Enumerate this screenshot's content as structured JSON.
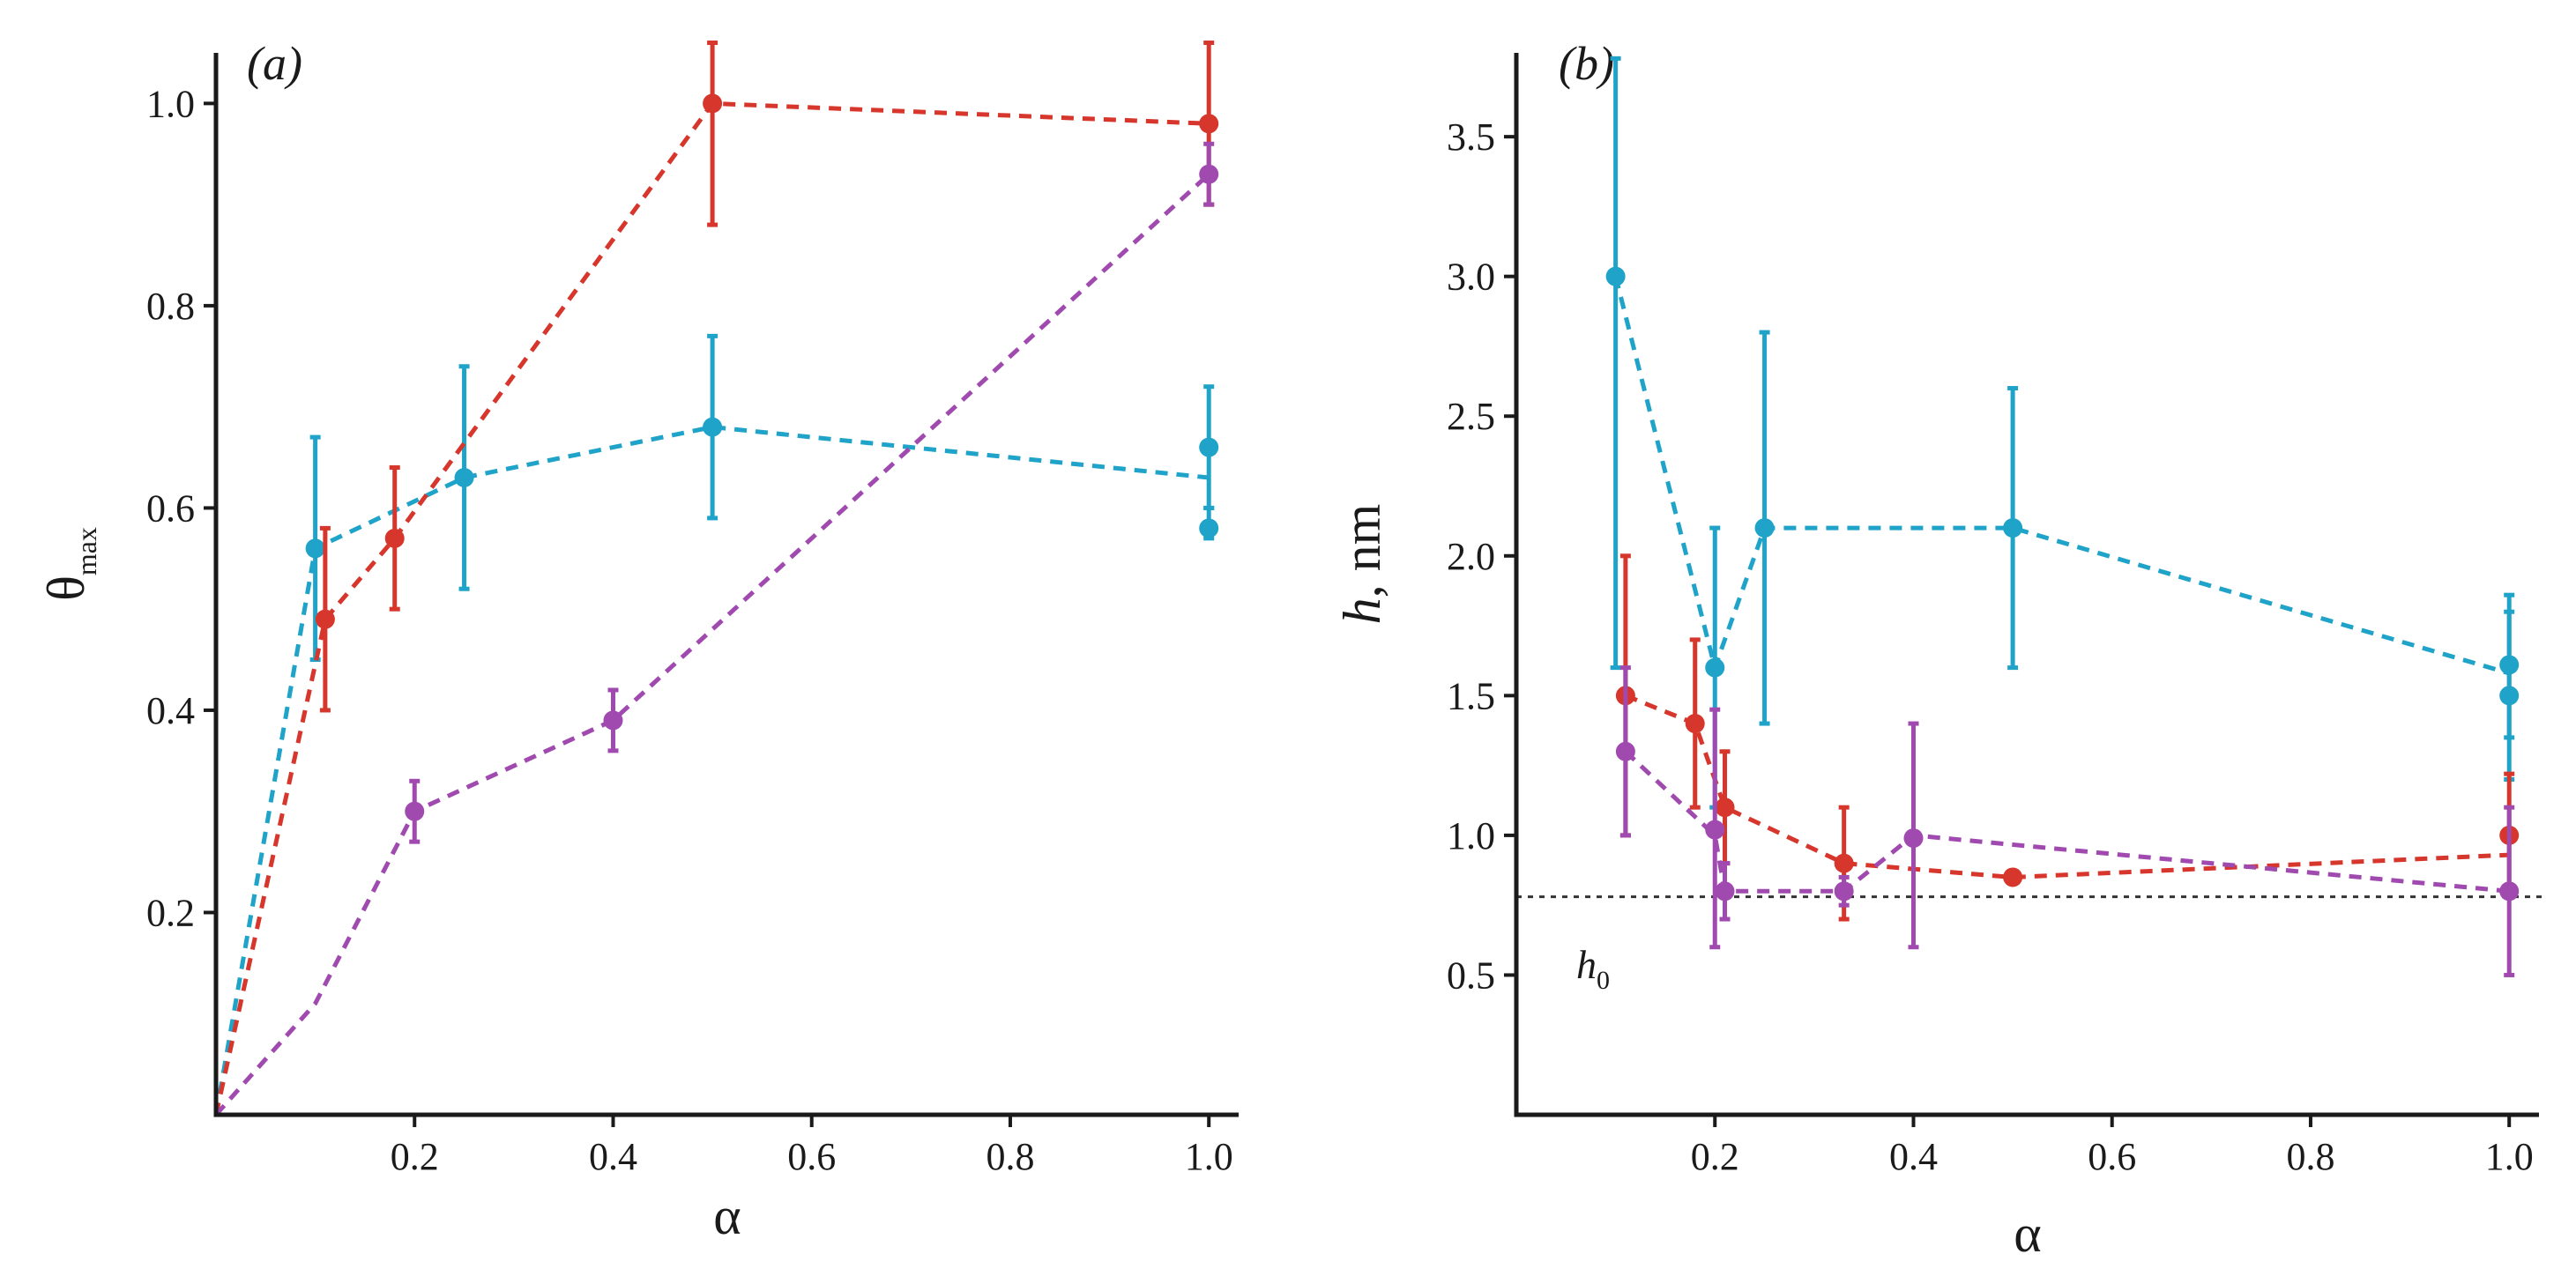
{
  "chart_data": [
    {
      "type": "line",
      "panel_label": "(a)",
      "title": "",
      "xlabel": "α",
      "ylabel": "θ",
      "ylabel_sub": "max",
      "xlim": [
        0,
        1.03
      ],
      "ylim": [
        0,
        1.05
      ],
      "xticks": [
        0.2,
        0.4,
        0.6,
        0.8,
        1.0
      ],
      "xtick_labels": [
        "0.2",
        "0.4",
        "0.6",
        "0.8",
        "1.0"
      ],
      "yticks": [
        0.2,
        0.4,
        0.6,
        0.8,
        1.0
      ],
      "ytick_labels": [
        "0.2",
        "0.4",
        "0.6",
        "0.8",
        "1.0"
      ],
      "grid": false,
      "series": [
        {
          "name": "cyan",
          "color": "#1fa3c9",
          "line": [
            [
              0.0,
              0.0
            ],
            [
              0.1,
              0.56
            ],
            [
              0.25,
              0.63
            ],
            [
              0.5,
              0.68
            ],
            [
              1.0,
              0.63
            ]
          ],
          "points": [
            {
              "x": 0.1,
              "y": 0.56,
              "lo": 0.45,
              "hi": 0.67
            },
            {
              "x": 0.25,
              "y": 0.63,
              "lo": 0.52,
              "hi": 0.74
            },
            {
              "x": 0.5,
              "y": 0.68,
              "lo": 0.59,
              "hi": 0.77
            },
            {
              "x": 1.0,
              "y": 0.66,
              "lo": 0.6,
              "hi": 0.72
            },
            {
              "x": 1.0,
              "y": 0.58,
              "lo": 0.57,
              "hi": 0.6
            }
          ]
        },
        {
          "name": "red",
          "color": "#d6362b",
          "line": [
            [
              0.0,
              0.0
            ],
            [
              0.11,
              0.49
            ],
            [
              0.18,
              0.57
            ],
            [
              0.5,
              1.0
            ],
            [
              1.0,
              0.98
            ]
          ],
          "points": [
            {
              "x": 0.11,
              "y": 0.49,
              "lo": 0.4,
              "hi": 0.58
            },
            {
              "x": 0.18,
              "y": 0.57,
              "lo": 0.5,
              "hi": 0.64
            },
            {
              "x": 0.5,
              "y": 1.0,
              "lo": 0.88,
              "hi": 1.06
            },
            {
              "x": 1.0,
              "y": 0.98,
              "lo": 0.9,
              "hi": 1.06
            }
          ]
        },
        {
          "name": "purple",
          "color": "#a04ab0",
          "line": [
            [
              0.0,
              0.0
            ],
            [
              0.1,
              0.11
            ],
            [
              0.2,
              0.3
            ],
            [
              0.4,
              0.39
            ],
            [
              1.0,
              0.93
            ]
          ],
          "points": [
            {
              "x": 0.2,
              "y": 0.3,
              "lo": 0.27,
              "hi": 0.33
            },
            {
              "x": 0.4,
              "y": 0.39,
              "lo": 0.36,
              "hi": 0.42
            },
            {
              "x": 1.0,
              "y": 0.93,
              "lo": 0.9,
              "hi": 0.96
            }
          ]
        }
      ]
    },
    {
      "type": "line",
      "panel_label": "(b)",
      "title": "",
      "xlabel": "α",
      "ylabel": "h, nm",
      "ylabel_italic_part": "h",
      "ylabel_rest": ", nm",
      "xlim": [
        0,
        1.03
      ],
      "ylim": [
        0,
        3.8
      ],
      "xticks": [
        0.2,
        0.4,
        0.6,
        0.8,
        1.0
      ],
      "xtick_labels": [
        "0.2",
        "0.4",
        "0.6",
        "0.8",
        "1.0"
      ],
      "yticks": [
        0.5,
        1.0,
        1.5,
        2.0,
        2.5,
        3.0,
        3.5
      ],
      "ytick_labels": [
        "0.5",
        "1.0",
        "1.5",
        "2.0",
        "2.5",
        "3.0",
        "3.5"
      ],
      "grid": false,
      "reference_line": {
        "y": 0.78,
        "label": "h",
        "label_sub": "0"
      },
      "series": [
        {
          "name": "cyan",
          "color": "#1fa3c9",
          "line": [
            [
              0.1,
              3.0
            ],
            [
              0.2,
              1.6
            ],
            [
              0.25,
              2.1
            ],
            [
              0.5,
              2.1
            ],
            [
              1.0,
              1.58
            ]
          ],
          "points": [
            {
              "x": 0.1,
              "y": 3.0,
              "lo": 1.6,
              "hi": 3.78
            },
            {
              "x": 0.2,
              "y": 1.6,
              "lo": 1.1,
              "hi": 2.1
            },
            {
              "x": 0.25,
              "y": 2.1,
              "lo": 1.4,
              "hi": 2.8
            },
            {
              "x": 0.5,
              "y": 2.1,
              "lo": 1.6,
              "hi": 2.6
            },
            {
              "x": 1.0,
              "y": 1.61,
              "lo": 1.35,
              "hi": 1.86
            },
            {
              "x": 1.0,
              "y": 1.5,
              "lo": 1.2,
              "hi": 1.8
            }
          ]
        },
        {
          "name": "red",
          "color": "#d6362b",
          "line": [
            [
              0.11,
              1.5
            ],
            [
              0.18,
              1.4
            ],
            [
              0.21,
              1.1
            ],
            [
              0.33,
              0.9
            ],
            [
              0.5,
              0.85
            ],
            [
              1.0,
              0.93
            ]
          ],
          "points": [
            {
              "x": 0.11,
              "y": 1.5,
              "lo": 1.0,
              "hi": 2.0
            },
            {
              "x": 0.18,
              "y": 1.4,
              "lo": 1.1,
              "hi": 1.7
            },
            {
              "x": 0.21,
              "y": 1.1,
              "lo": 0.9,
              "hi": 1.3
            },
            {
              "x": 0.33,
              "y": 0.9,
              "lo": 0.7,
              "hi": 1.1
            },
            {
              "x": 0.5,
              "y": 0.85,
              "lo": 0.85,
              "hi": 0.85
            },
            {
              "x": 1.0,
              "y": 1.0,
              "lo": 0.8,
              "hi": 1.22
            }
          ]
        },
        {
          "name": "purple",
          "color": "#a04ab0",
          "line": [
            [
              0.11,
              1.3
            ],
            [
              0.2,
              1.0
            ],
            [
              0.21,
              0.8
            ],
            [
              0.33,
              0.8
            ],
            [
              0.4,
              1.0
            ],
            [
              1.0,
              0.8
            ]
          ],
          "points": [
            {
              "x": 0.11,
              "y": 1.3,
              "lo": 1.0,
              "hi": 1.6
            },
            {
              "x": 0.2,
              "y": 1.02,
              "lo": 0.6,
              "hi": 1.45
            },
            {
              "x": 0.21,
              "y": 0.8,
              "lo": 0.7,
              "hi": 0.9
            },
            {
              "x": 0.33,
              "y": 0.8,
              "lo": 0.75,
              "hi": 0.85
            },
            {
              "x": 0.4,
              "y": 0.99,
              "lo": 0.6,
              "hi": 1.4
            },
            {
              "x": 1.0,
              "y": 0.8,
              "lo": 0.5,
              "hi": 1.1
            }
          ]
        }
      ]
    }
  ]
}
